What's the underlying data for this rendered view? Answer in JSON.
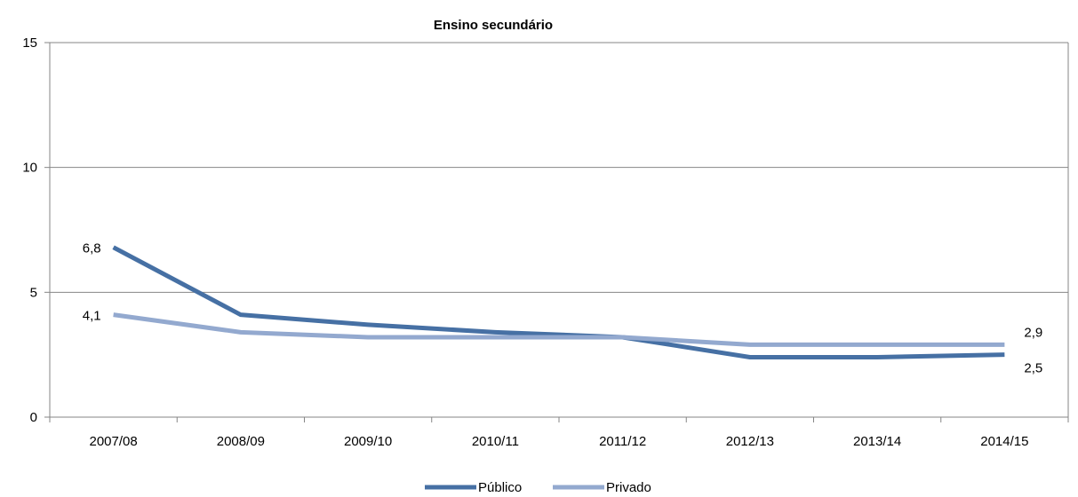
{
  "chart_data": {
    "type": "line",
    "title": "Ensino secundário",
    "xlabel": "",
    "ylabel": "",
    "categories": [
      "2007/08",
      "2008/09",
      "2009/10",
      "2010/11",
      "2011/12",
      "2012/13",
      "2013/14",
      "2014/15"
    ],
    "ylim": [
      0,
      15
    ],
    "yticks": [
      "0",
      "5",
      "10",
      "15"
    ],
    "grid": true,
    "legend": "bottom",
    "series": [
      {
        "name": "Público",
        "color": "#4670a4",
        "values": [
          6.8,
          4.1,
          3.7,
          3.4,
          3.2,
          2.4,
          2.4,
          2.5
        ]
      },
      {
        "name": "Privado",
        "color": "#93a9cf",
        "values": [
          4.1,
          3.4,
          3.2,
          3.2,
          3.2,
          2.9,
          2.9,
          2.9
        ]
      }
    ],
    "data_labels": [
      {
        "series": 0,
        "index": 0,
        "text": "6,8"
      },
      {
        "series": 1,
        "index": 0,
        "text": "4,1"
      },
      {
        "series": 1,
        "index": 7,
        "text": "2,9"
      },
      {
        "series": 0,
        "index": 7,
        "text": "2,5"
      }
    ]
  }
}
